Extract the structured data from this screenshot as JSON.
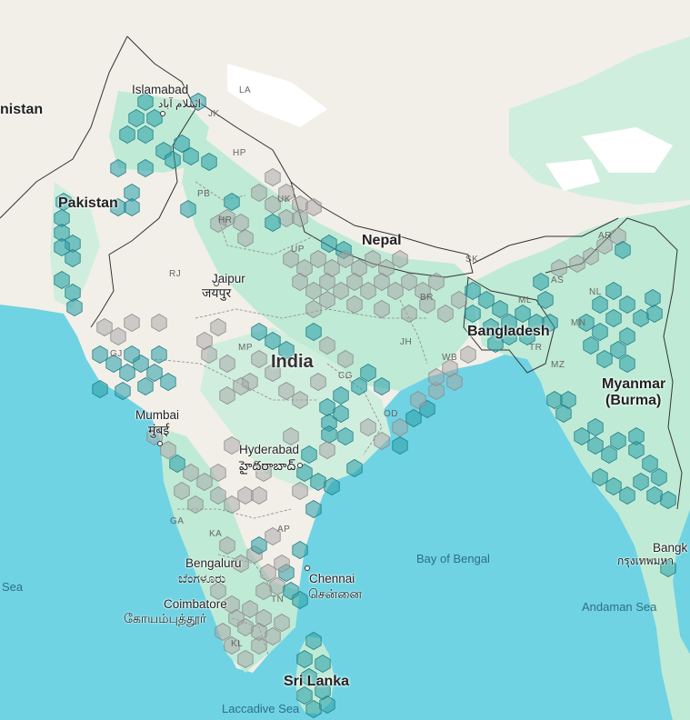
{
  "colors": {
    "water": "#6fd3e3",
    "land": "#f2efe8",
    "green_land": "#bfead6",
    "green_dark": "#93dfbf",
    "snow": "#ffffff",
    "hex_teal": "#2a9fa8",
    "hex_grey": "#a5a5a5",
    "border": "#333333"
  },
  "countries": {
    "afghanistan": "nistan",
    "pakistan": "Pakistan",
    "nepal": "Nepal",
    "india": "India",
    "bangladesh": "Bangladesh",
    "myanmar_line1": "Myanmar",
    "myanmar_line2": "(Burma)",
    "sri_lanka": "Sri Lanka"
  },
  "cities": {
    "islamabad": "Islamabad",
    "islamabad_native": "اسلام آباد",
    "jaipur": "Jaipur",
    "jaipur_native": "जयपुर",
    "mumbai": "Mumbai",
    "mumbai_native": "मुंबई",
    "hyderabad": "Hyderabad",
    "hyderabad_native": "హైదరాబాద్",
    "bengaluru": "Bengaluru",
    "bengaluru_native": "ಬೆಂಗಳೂರು",
    "chennai": "Chennai",
    "chennai_native": "சென்னை",
    "coimbatore": "Coimbatore",
    "coimbatore_native": "கோயம்புத்தூர்",
    "bangkok": "Bangk",
    "bangkok_native": "กรุงเทพมหา"
  },
  "states": {
    "la": "LA",
    "jk": "JK",
    "hp": "HP",
    "pb": "PB",
    "uk": "UK",
    "hr": "HR",
    "up": "UP",
    "rj": "RJ",
    "sk": "SK",
    "ar": "AR",
    "as": "AS",
    "nl": "NL",
    "ml": "ML",
    "br": "BR",
    "mn": "MN",
    "tr": "TR",
    "jh": "JH",
    "mp": "MP",
    "wb": "WB",
    "mz": "MZ",
    "gj": "GJ",
    "cg": "CG",
    "od": "OD",
    "ga": "GA",
    "ka": "KA",
    "ap": "AP",
    "tn": "TN",
    "kl": "KL"
  },
  "seas": {
    "arabian": "Sea",
    "bay_of_bengal": "Bay of Bengal",
    "andaman": "Andaman Sea",
    "laccadive": "Laccadive Sea"
  }
}
